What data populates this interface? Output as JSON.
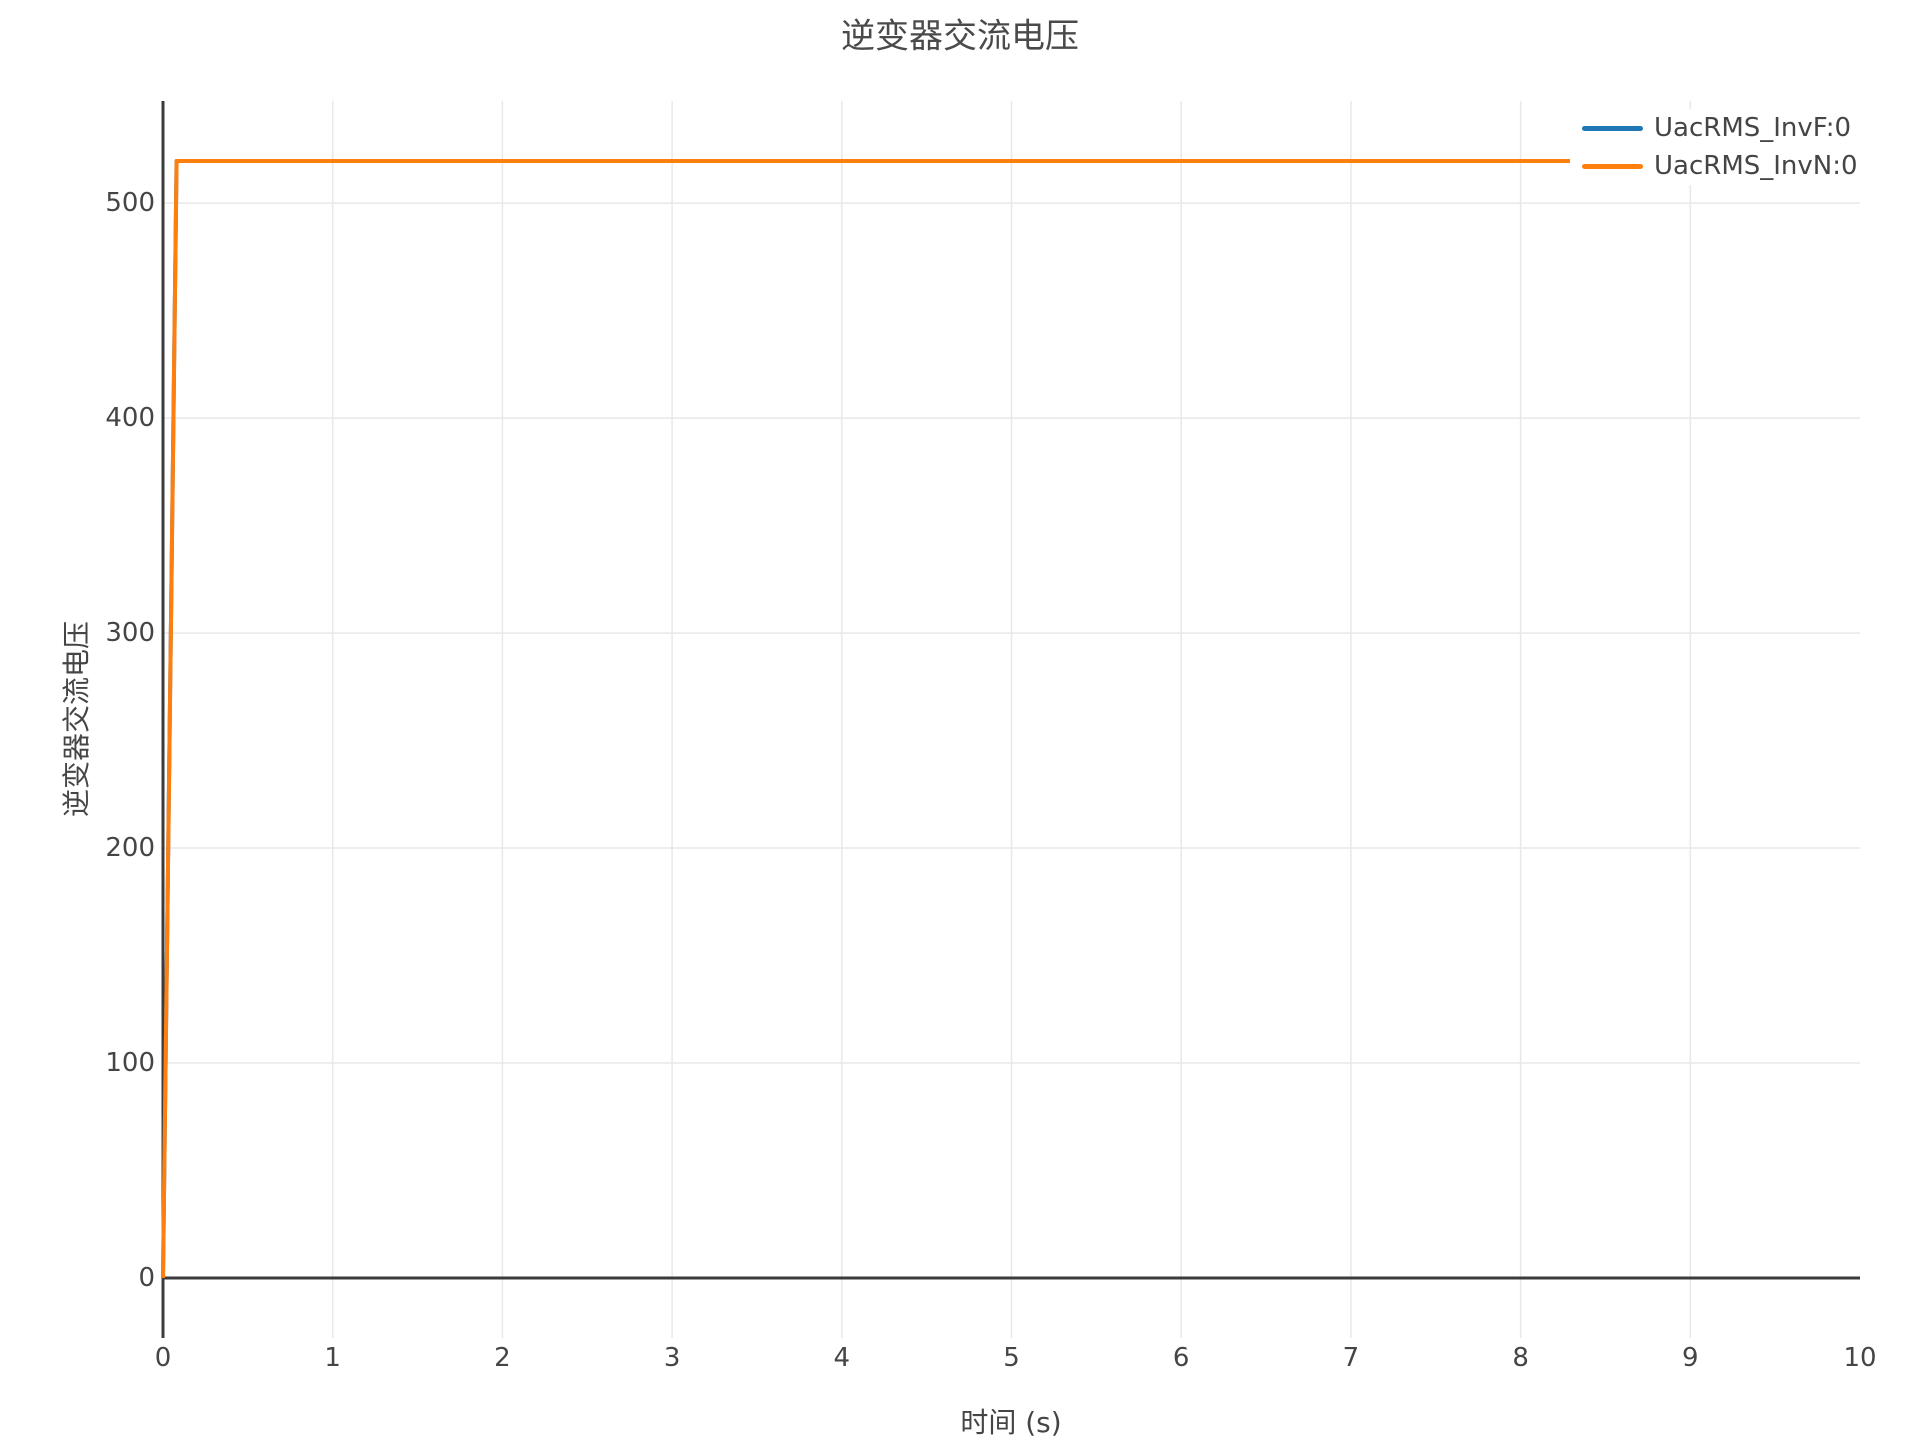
{
  "chart_data": {
    "type": "line",
    "title": "逆变器交流电压",
    "xlabel": "时间 (s)",
    "ylabel": "逆变器交流电压",
    "xlim": [
      0,
      10
    ],
    "ylim": [
      -27.9,
      547.5
    ],
    "xticks": [
      0,
      1,
      2,
      3,
      4,
      5,
      6,
      7,
      8,
      9,
      10
    ],
    "yticks": [
      0,
      100,
      200,
      300,
      400,
      500
    ],
    "grid": true,
    "legend_position": "top-right",
    "steady_state_value": 519.6,
    "rise_time_s": 0.08,
    "series": [
      {
        "name": "UacRMS_InvF:0",
        "color": "#1f77b4",
        "points": [
          [
            0,
            0
          ],
          [
            0.08,
            519.6
          ],
          [
            10,
            519.6
          ]
        ]
      },
      {
        "name": "UacRMS_InvN:0",
        "color": "#ff7f0e",
        "points": [
          [
            0,
            0
          ],
          [
            0.08,
            519.6
          ],
          [
            10,
            519.6
          ]
        ]
      }
    ]
  },
  "colors": {
    "background": "#ffffff",
    "axis_line": "#3b3b3b",
    "grid_line": "#e8e8e8",
    "text": "#454545"
  }
}
